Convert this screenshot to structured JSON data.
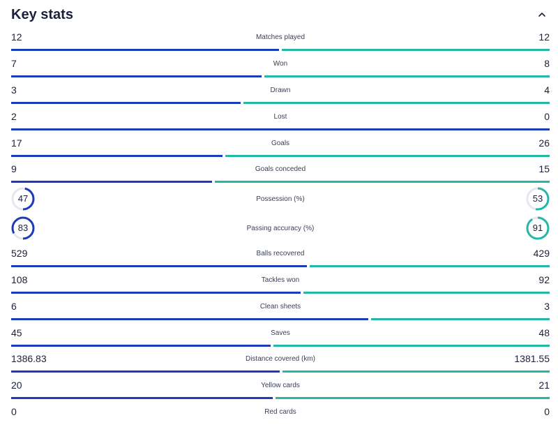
{
  "header": {
    "title": "Key stats"
  },
  "colors": {
    "home": "#1c3bb8",
    "away": "#25b7a7",
    "track": "#e6e7ef"
  },
  "icons": {
    "collapse": "chevron-up-icon"
  },
  "stats": [
    {
      "label": "Matches played",
      "home": "12",
      "away": "12",
      "home_share": 0.5
    },
    {
      "label": "Won",
      "home": "7",
      "away": "8",
      "home_share": 0.467
    },
    {
      "label": "Drawn",
      "home": "3",
      "away": "4",
      "home_share": 0.429
    },
    {
      "label": "Lost",
      "home": "2",
      "away": "0",
      "home_share": 1.0
    },
    {
      "label": "Goals",
      "home": "17",
      "away": "26",
      "home_share": 0.395
    },
    {
      "label": "Goals conceded",
      "home": "9",
      "away": "15",
      "home_share": 0.375
    },
    {
      "label": "Possession (%)",
      "home": "47",
      "away": "53",
      "type": "ring",
      "home_pct": 47,
      "away_pct": 53
    },
    {
      "label": "Passing accuracy (%)",
      "home": "83",
      "away": "91",
      "type": "ring",
      "home_pct": 83,
      "away_pct": 91
    },
    {
      "label": "Balls recovered",
      "home": "529",
      "away": "429",
      "home_share": 0.552
    },
    {
      "label": "Tackles won",
      "home": "108",
      "away": "92",
      "home_share": 0.54
    },
    {
      "label": "Clean sheets",
      "home": "6",
      "away": "3",
      "home_share": 0.667
    },
    {
      "label": "Saves",
      "home": "45",
      "away": "48",
      "home_share": 0.484
    },
    {
      "label": "Distance covered (km)",
      "home": "1386.83",
      "away": "1381.55",
      "home_share": 0.501
    },
    {
      "label": "Yellow cards",
      "home": "20",
      "away": "21",
      "home_share": 0.488
    },
    {
      "label": "Red cards",
      "home": "0",
      "away": "0",
      "home_share": 0.5,
      "no_bar": true
    }
  ]
}
